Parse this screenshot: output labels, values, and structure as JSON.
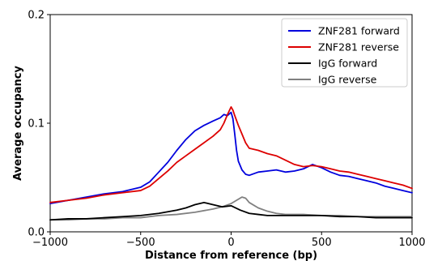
{
  "chart_data": {
    "type": "line",
    "xlabel": "Distance from reference (bp)",
    "ylabel": "Average occupancy",
    "xlim": [
      -1000,
      1000
    ],
    "ylim": [
      0,
      0.2
    ],
    "xticks": [
      -1000,
      -500,
      0,
      500,
      1000
    ],
    "xtick_labels": [
      "−1000",
      "−500",
      "0",
      "500",
      "1000"
    ],
    "yticks": [
      0,
      0.1,
      0.2
    ],
    "ytick_labels": [
      "0.0",
      "0.1",
      "0.2"
    ],
    "legend_position": "top-right",
    "grid": false,
    "series": [
      {
        "name": "ZNF281 forward",
        "color": "#0000dd",
        "x": [
          -1000,
          -900,
          -800,
          -700,
          -600,
          -500,
          -450,
          -400,
          -350,
          -300,
          -250,
          -200,
          -150,
          -100,
          -60,
          -40,
          -20,
          0,
          10,
          20,
          30,
          40,
          60,
          80,
          100,
          150,
          200,
          250,
          300,
          350,
          400,
          450,
          500,
          550,
          600,
          650,
          700,
          750,
          800,
          850,
          900,
          950,
          1000
        ],
        "y": [
          0.026,
          0.029,
          0.032,
          0.035,
          0.037,
          0.041,
          0.046,
          0.055,
          0.064,
          0.075,
          0.085,
          0.093,
          0.098,
          0.102,
          0.105,
          0.108,
          0.107,
          0.11,
          0.104,
          0.09,
          0.075,
          0.065,
          0.057,
          0.053,
          0.052,
          0.055,
          0.056,
          0.057,
          0.055,
          0.056,
          0.058,
          0.062,
          0.059,
          0.055,
          0.052,
          0.051,
          0.049,
          0.047,
          0.045,
          0.042,
          0.04,
          0.038,
          0.036
        ]
      },
      {
        "name": "ZNF281 reverse",
        "color": "#dd0000",
        "x": [
          -1000,
          -900,
          -800,
          -700,
          -600,
          -500,
          -450,
          -400,
          -350,
          -300,
          -250,
          -200,
          -150,
          -100,
          -60,
          -40,
          -20,
          0,
          10,
          20,
          40,
          60,
          80,
          100,
          150,
          200,
          250,
          300,
          350,
          400,
          450,
          500,
          550,
          600,
          650,
          700,
          750,
          800,
          850,
          900,
          950,
          1000
        ],
        "y": [
          0.027,
          0.029,
          0.031,
          0.034,
          0.036,
          0.038,
          0.042,
          0.049,
          0.056,
          0.064,
          0.07,
          0.076,
          0.082,
          0.088,
          0.094,
          0.1,
          0.108,
          0.115,
          0.112,
          0.107,
          0.098,
          0.09,
          0.082,
          0.077,
          0.075,
          0.072,
          0.07,
          0.066,
          0.062,
          0.06,
          0.061,
          0.06,
          0.058,
          0.056,
          0.055,
          0.053,
          0.051,
          0.049,
          0.047,
          0.045,
          0.043,
          0.04
        ]
      },
      {
        "name": "IgG forward",
        "color": "#000000",
        "x": [
          -1000,
          -900,
          -800,
          -700,
          -600,
          -500,
          -400,
          -300,
          -250,
          -200,
          -150,
          -100,
          -50,
          0,
          50,
          100,
          150,
          200,
          300,
          400,
          500,
          600,
          700,
          800,
          900,
          1000
        ],
        "y": [
          0.011,
          0.012,
          0.012,
          0.013,
          0.014,
          0.015,
          0.017,
          0.02,
          0.022,
          0.025,
          0.027,
          0.025,
          0.023,
          0.024,
          0.02,
          0.017,
          0.016,
          0.015,
          0.015,
          0.015,
          0.015,
          0.014,
          0.014,
          0.013,
          0.013,
          0.013
        ]
      },
      {
        "name": "IgG reverse",
        "color": "#808080",
        "x": [
          -1000,
          -900,
          -800,
          -700,
          -600,
          -500,
          -400,
          -300,
          -200,
          -100,
          -50,
          0,
          30,
          60,
          80,
          100,
          150,
          200,
          250,
          300,
          400,
          500,
          600,
          700,
          800,
          900,
          1000
        ],
        "y": [
          0.011,
          0.011,
          0.012,
          0.012,
          0.013,
          0.013,
          0.015,
          0.016,
          0.018,
          0.021,
          0.023,
          0.026,
          0.029,
          0.032,
          0.031,
          0.027,
          0.022,
          0.019,
          0.017,
          0.016,
          0.016,
          0.015,
          0.015,
          0.014,
          0.014,
          0.014,
          0.014
        ]
      }
    ]
  }
}
